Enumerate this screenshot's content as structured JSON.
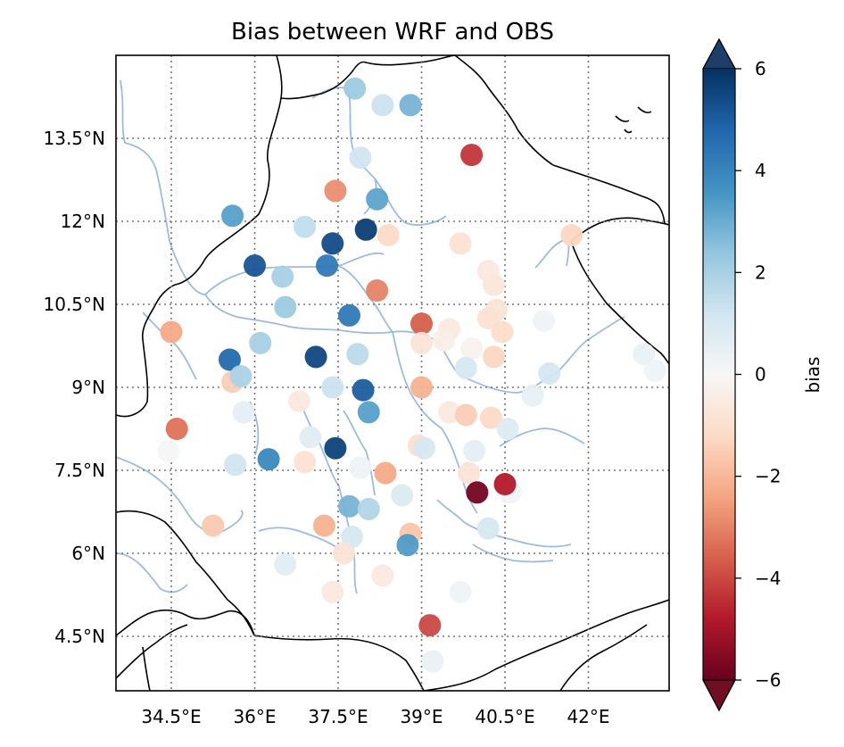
{
  "chart_data": {
    "type": "scatter",
    "title": "Bias between WRF and OBS",
    "x_ticks": [
      "34.5°E",
      "36°E",
      "37.5°E",
      "39°E",
      "40.5°E",
      "42°E"
    ],
    "y_ticks": [
      "4.5°N",
      "6°N",
      "7.5°N",
      "9°N",
      "10.5°N",
      "12°N",
      "13.5°N"
    ],
    "x_tick_values": [
      34.5,
      36,
      37.5,
      39,
      40.5,
      42
    ],
    "y_tick_values": [
      4.5,
      6,
      7.5,
      9,
      10.5,
      12,
      13.5
    ],
    "xlim": [
      33.5,
      43.5
    ],
    "ylim": [
      3.5,
      15.0
    ],
    "grid": true,
    "colorbar": {
      "label": "bias",
      "ticks": [
        "6",
        "4",
        "2",
        "0",
        "−2",
        "−4",
        "−6"
      ],
      "tick_values": [
        6,
        4,
        2,
        0,
        -2,
        -4,
        -6
      ],
      "range": [
        -6,
        6
      ],
      "colormap": "RdBu (red = negative, blue = positive)",
      "extend": "both"
    },
    "points": [
      {
        "lon": 37.8,
        "lat": 14.4,
        "bias": 2.2
      },
      {
        "lon": 38.3,
        "lat": 14.1,
        "bias": 1.3
      },
      {
        "lon": 38.8,
        "lat": 14.1,
        "bias": 2.8
      },
      {
        "lon": 37.9,
        "lat": 13.15,
        "bias": 1.2
      },
      {
        "lon": 39.9,
        "lat": 13.2,
        "bias": -4.3
      },
      {
        "lon": 37.45,
        "lat": 12.55,
        "bias": -2.8
      },
      {
        "lon": 38.2,
        "lat": 12.4,
        "bias": 3.2
      },
      {
        "lon": 35.6,
        "lat": 12.1,
        "bias": 3.3
      },
      {
        "lon": 36.9,
        "lat": 11.9,
        "bias": 1.5
      },
      {
        "lon": 38.0,
        "lat": 11.85,
        "bias": 5.7
      },
      {
        "lon": 38.4,
        "lat": 11.75,
        "bias": -1.2
      },
      {
        "lon": 37.4,
        "lat": 11.6,
        "bias": 5.4
      },
      {
        "lon": 39.7,
        "lat": 11.6,
        "bias": -0.9
      },
      {
        "lon": 41.7,
        "lat": 11.75,
        "bias": -1.3
      },
      {
        "lon": 36.0,
        "lat": 11.2,
        "bias": 5.2
      },
      {
        "lon": 36.5,
        "lat": 11.0,
        "bias": 2.0
      },
      {
        "lon": 37.3,
        "lat": 11.2,
        "bias": 4.3
      },
      {
        "lon": 40.2,
        "lat": 11.1,
        "bias": -0.6
      },
      {
        "lon": 40.3,
        "lat": 10.85,
        "bias": -0.7
      },
      {
        "lon": 38.2,
        "lat": 10.75,
        "bias": -3.0
      },
      {
        "lon": 36.55,
        "lat": 10.45,
        "bias": 2.2
      },
      {
        "lon": 37.7,
        "lat": 10.3,
        "bias": 4.3
      },
      {
        "lon": 40.35,
        "lat": 10.4,
        "bias": -0.8
      },
      {
        "lon": 39.0,
        "lat": 10.15,
        "bias": -3.6
      },
      {
        "lon": 39.5,
        "lat": 10.05,
        "bias": -0.6
      },
      {
        "lon": 40.2,
        "lat": 10.25,
        "bias": -0.9
      },
      {
        "lon": 40.45,
        "lat": 10.0,
        "bias": -1.1
      },
      {
        "lon": 41.2,
        "lat": 10.2,
        "bias": 0.3
      },
      {
        "lon": 34.5,
        "lat": 10.0,
        "bias": -2.3
      },
      {
        "lon": 36.1,
        "lat": 9.8,
        "bias": 2.0
      },
      {
        "lon": 39.0,
        "lat": 9.8,
        "bias": -0.8
      },
      {
        "lon": 39.4,
        "lat": 9.85,
        "bias": -0.4
      },
      {
        "lon": 39.9,
        "lat": 9.7,
        "bias": -0.2
      },
      {
        "lon": 40.3,
        "lat": 9.55,
        "bias": -1.3
      },
      {
        "lon": 35.55,
        "lat": 9.5,
        "bias": 4.7
      },
      {
        "lon": 37.1,
        "lat": 9.55,
        "bias": 5.5
      },
      {
        "lon": 37.85,
        "lat": 9.6,
        "bias": 1.6
      },
      {
        "lon": 39.8,
        "lat": 9.35,
        "bias": 1.0
      },
      {
        "lon": 41.3,
        "lat": 9.25,
        "bias": 1.1
      },
      {
        "lon": 43.0,
        "lat": 9.6,
        "bias": 0.4
      },
      {
        "lon": 43.2,
        "lat": 9.3,
        "bias": 0.3
      },
      {
        "lon": 43.6,
        "lat": 9.35,
        "bias": -0.7
      },
      {
        "lon": 35.6,
        "lat": 9.1,
        "bias": -1.5
      },
      {
        "lon": 35.75,
        "lat": 9.2,
        "bias": 1.9
      },
      {
        "lon": 36.8,
        "lat": 8.75,
        "bias": -0.6
      },
      {
        "lon": 37.4,
        "lat": 9.0,
        "bias": 1.3
      },
      {
        "lon": 37.95,
        "lat": 8.95,
        "bias": 5.0
      },
      {
        "lon": 39.0,
        "lat": 9.0,
        "bias": -2.1
      },
      {
        "lon": 41.0,
        "lat": 8.85,
        "bias": 0.5
      },
      {
        "lon": 35.8,
        "lat": 8.55,
        "bias": 0.6
      },
      {
        "lon": 38.05,
        "lat": 8.55,
        "bias": 3.3
      },
      {
        "lon": 39.5,
        "lat": 8.55,
        "bias": -0.6
      },
      {
        "lon": 39.8,
        "lat": 8.5,
        "bias": -1.5
      },
      {
        "lon": 40.25,
        "lat": 8.45,
        "bias": -1.2
      },
      {
        "lon": 34.6,
        "lat": 8.25,
        "bias": -3.3
      },
      {
        "lon": 40.55,
        "lat": 8.25,
        "bias": 0.8
      },
      {
        "lon": 34.45,
        "lat": 7.85,
        "bias": 0.1
      },
      {
        "lon": 37.0,
        "lat": 8.1,
        "bias": 0.7
      },
      {
        "lon": 37.45,
        "lat": 7.9,
        "bias": 5.6
      },
      {
        "lon": 38.95,
        "lat": 7.95,
        "bias": -1.0
      },
      {
        "lon": 39.05,
        "lat": 7.9,
        "bias": 1.0
      },
      {
        "lon": 39.95,
        "lat": 7.85,
        "bias": 0.6
      },
      {
        "lon": 35.65,
        "lat": 7.6,
        "bias": 1.2
      },
      {
        "lon": 36.25,
        "lat": 7.7,
        "bias": 3.9
      },
      {
        "lon": 36.9,
        "lat": 7.65,
        "bias": -0.9
      },
      {
        "lon": 37.9,
        "lat": 7.55,
        "bias": 0.3
      },
      {
        "lon": 38.35,
        "lat": 7.45,
        "bias": -2.3
      },
      {
        "lon": 39.85,
        "lat": 7.45,
        "bias": -0.8
      },
      {
        "lon": 38.65,
        "lat": 7.05,
        "bias": 0.9
      },
      {
        "lon": 40.6,
        "lat": 7.1,
        "bias": 0.2
      },
      {
        "lon": 40.5,
        "lat": 7.25,
        "bias": -4.8
      },
      {
        "lon": 40.0,
        "lat": 7.1,
        "bias": -5.8
      },
      {
        "lon": 37.7,
        "lat": 6.85,
        "bias": 2.8
      },
      {
        "lon": 38.05,
        "lat": 6.8,
        "bias": 1.8
      },
      {
        "lon": 35.25,
        "lat": 6.5,
        "bias": -1.6
      },
      {
        "lon": 37.25,
        "lat": 6.5,
        "bias": -2.1
      },
      {
        "lon": 38.8,
        "lat": 6.35,
        "bias": -1.7
      },
      {
        "lon": 37.75,
        "lat": 6.3,
        "bias": 1.0
      },
      {
        "lon": 38.75,
        "lat": 6.15,
        "bias": 3.4
      },
      {
        "lon": 40.2,
        "lat": 6.45,
        "bias": 1.0
      },
      {
        "lon": 37.6,
        "lat": 6.0,
        "bias": -0.8
      },
      {
        "lon": 36.55,
        "lat": 5.8,
        "bias": 0.7
      },
      {
        "lon": 38.3,
        "lat": 5.6,
        "bias": -0.6
      },
      {
        "lon": 39.7,
        "lat": 5.3,
        "bias": 0.3
      },
      {
        "lon": 37.4,
        "lat": 5.3,
        "bias": -0.6
      },
      {
        "lon": 39.15,
        "lat": 4.7,
        "bias": -4.0
      },
      {
        "lon": 39.2,
        "lat": 4.05,
        "bias": 0.4
      }
    ]
  }
}
